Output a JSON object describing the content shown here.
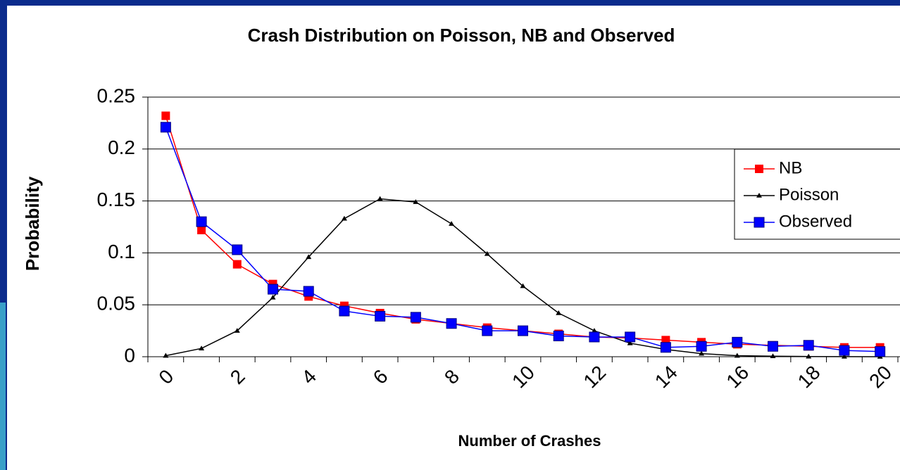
{
  "chart_data": {
    "type": "line",
    "title": "Crash Distribution on Poisson, NB and Observed",
    "x_label": "Number of Crashes",
    "y_label": "Probability",
    "categories": [
      "0",
      null,
      "2",
      null,
      "4",
      null,
      "6",
      null,
      "8",
      null,
      "10",
      null,
      "12",
      null,
      "14",
      null,
      "16",
      null,
      "18",
      null,
      "20"
    ],
    "series": [
      {
        "name": "NB",
        "color": "#ff0000",
        "marker": "square",
        "values": [
          0.232,
          0.122,
          0.089,
          0.07,
          0.058,
          0.049,
          0.042,
          0.036,
          0.032,
          0.028,
          0.025,
          0.022,
          0.019,
          0.018,
          0.016,
          0.014,
          0.012,
          0.011,
          0.01,
          0.009,
          0.009
        ]
      },
      {
        "name": "Poisson",
        "color": "#000000",
        "marker": "triangle",
        "values": [
          0.001,
          0.008,
          0.025,
          0.057,
          0.096,
          0.133,
          0.152,
          0.149,
          0.128,
          0.099,
          0.068,
          0.042,
          0.025,
          0.013,
          0.007,
          0.003,
          0.001,
          0.0005,
          0.0002,
          0.0001,
          0
        ]
      },
      {
        "name": "Observed",
        "color": "#0000ff",
        "marker": "square",
        "values": [
          0.221,
          0.13,
          0.103,
          0.065,
          0.063,
          0.044,
          0.039,
          0.038,
          0.032,
          0.025,
          0.025,
          0.02,
          0.019,
          0.019,
          0.009,
          0.01,
          0.014,
          0.01,
          0.011,
          0.006,
          0.005
        ]
      }
    ],
    "ylim": [
      0,
      0.25
    ],
    "yticks": [
      0,
      0.05,
      0.1,
      0.15,
      0.2,
      0.25
    ],
    "grid": true,
    "legend": "right"
  }
}
